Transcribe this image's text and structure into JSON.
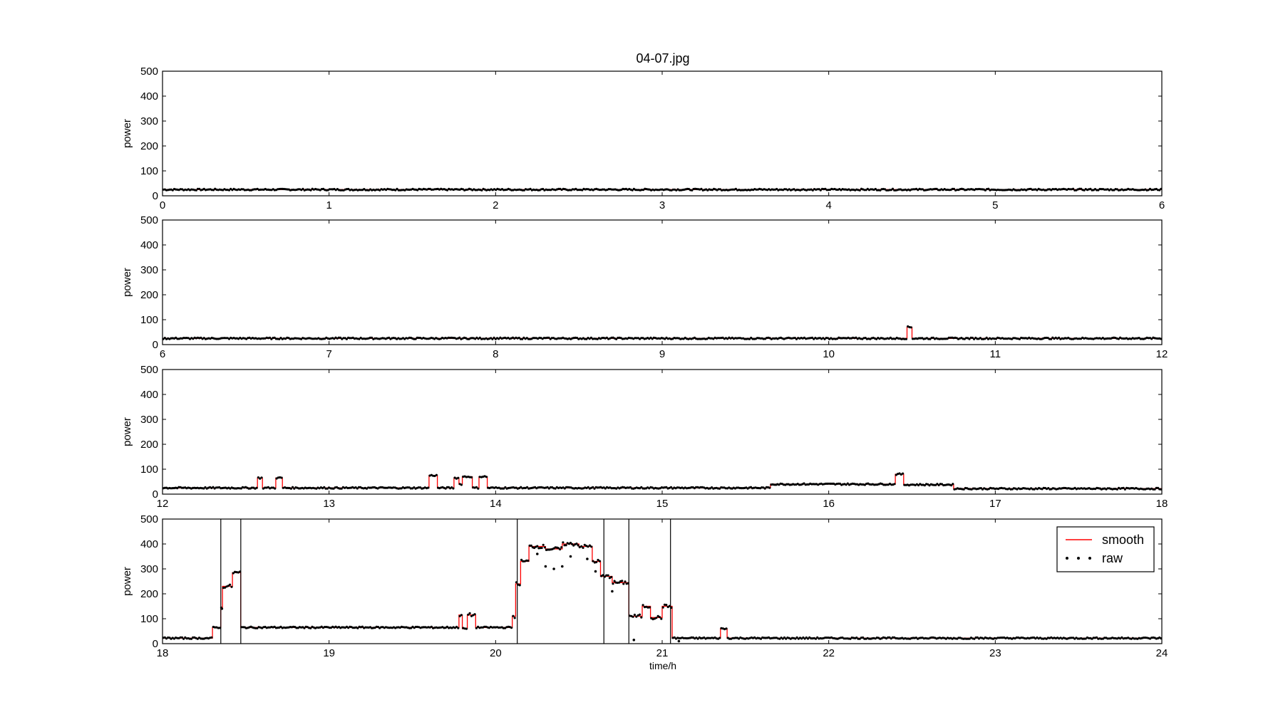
{
  "chart_data": {
    "type": "line",
    "title": "04-07.jpg",
    "xlabel": "time/h",
    "ylabel": "power",
    "ylim": [
      0,
      500
    ],
    "yticks": [
      0,
      100,
      200,
      300,
      400,
      500
    ],
    "legend": {
      "placement": "top-right",
      "items": [
        "smooth",
        "raw"
      ]
    },
    "colors": {
      "smooth": "#ff0000",
      "raw": "#000000",
      "markers": "#000000"
    },
    "panels": [
      {
        "xlim": [
          0,
          6
        ],
        "xticks": [
          "0",
          "1",
          "2",
          "3",
          "4",
          "5",
          "6"
        ],
        "segments": [
          [
            0,
            6,
            25
          ]
        ],
        "events": [],
        "boundaries": []
      },
      {
        "xlim": [
          6,
          12
        ],
        "xticks": [
          "6",
          "7",
          "8",
          "9",
          "10",
          "11",
          "12"
        ],
        "segments": [
          [
            6,
            10.47,
            25
          ],
          [
            10.47,
            10.5,
            70
          ],
          [
            10.5,
            12,
            25
          ]
        ],
        "events": [],
        "boundaries": []
      },
      {
        "xlim": [
          12,
          18
        ],
        "xticks": [
          "12",
          "13",
          "14",
          "15",
          "16",
          "17",
          "18"
        ],
        "segments": [
          [
            12,
            12.57,
            25
          ],
          [
            12.57,
            12.6,
            65
          ],
          [
            12.6,
            12.68,
            25
          ],
          [
            12.68,
            12.72,
            65
          ],
          [
            12.72,
            13.6,
            25
          ],
          [
            13.6,
            13.65,
            75
          ],
          [
            13.65,
            13.75,
            25
          ],
          [
            13.75,
            13.78,
            65
          ],
          [
            13.78,
            13.8,
            40
          ],
          [
            13.8,
            13.86,
            70
          ],
          [
            13.86,
            13.9,
            25
          ],
          [
            13.9,
            13.95,
            70
          ],
          [
            13.95,
            15.65,
            25
          ],
          [
            15.65,
            16.4,
            40
          ],
          [
            16.4,
            16.45,
            80
          ],
          [
            16.45,
            16.75,
            38
          ],
          [
            16.75,
            18,
            22
          ]
        ],
        "events": [],
        "boundaries": []
      },
      {
        "xlim": [
          18,
          24
        ],
        "xticks": [
          "18",
          "19",
          "20",
          "21",
          "22",
          "23",
          "24"
        ],
        "segments": [
          [
            18,
            18.3,
            22
          ],
          [
            18.3,
            18.35,
            65
          ],
          [
            18.35,
            18.36,
            140
          ],
          [
            18.36,
            18.42,
            230
          ],
          [
            18.42,
            18.47,
            285
          ],
          [
            18.47,
            19.78,
            65
          ],
          [
            19.78,
            19.8,
            115
          ],
          [
            19.8,
            19.83,
            60
          ],
          [
            19.83,
            19.88,
            115
          ],
          [
            19.88,
            20.1,
            65
          ],
          [
            20.1,
            20.12,
            110
          ],
          [
            20.12,
            20.15,
            240
          ],
          [
            20.15,
            20.2,
            330
          ],
          [
            20.2,
            20.3,
            390
          ],
          [
            20.3,
            20.4,
            380
          ],
          [
            20.4,
            20.5,
            400
          ],
          [
            20.5,
            20.58,
            390
          ],
          [
            20.58,
            20.63,
            330
          ],
          [
            20.63,
            20.7,
            270
          ],
          [
            20.7,
            20.8,
            245
          ],
          [
            20.8,
            20.88,
            110
          ],
          [
            20.88,
            20.93,
            150
          ],
          [
            20.93,
            21.0,
            105
          ],
          [
            21.0,
            21.06,
            150
          ],
          [
            21.06,
            21.35,
            22
          ],
          [
            21.35,
            21.39,
            60
          ],
          [
            21.39,
            24,
            22
          ]
        ],
        "events": [
          [
            20.25,
            360
          ],
          [
            20.3,
            310
          ],
          [
            20.35,
            300
          ],
          [
            20.4,
            310
          ],
          [
            20.45,
            350
          ],
          [
            20.55,
            340
          ],
          [
            20.6,
            290
          ],
          [
            20.7,
            210
          ],
          [
            20.83,
            15
          ],
          [
            21.1,
            10
          ]
        ],
        "boundaries": [
          18.35,
          18.47,
          20.13,
          20.65,
          20.8,
          21.05
        ]
      }
    ]
  }
}
